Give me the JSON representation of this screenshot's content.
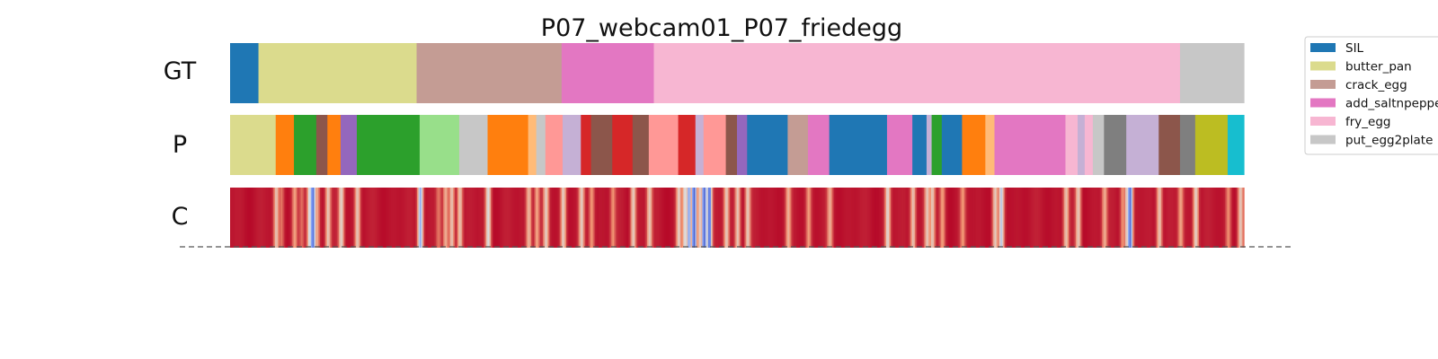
{
  "chart_data": {
    "type": "segmentation-timeline",
    "title": "P07_webcam01_P07_friedegg",
    "rows": [
      "GT",
      "P",
      "C"
    ],
    "x_range": [
      0,
      1
    ],
    "legend": {
      "placement": "top-right",
      "entries": [
        {
          "label": "SIL",
          "color": "#1f77b4"
        },
        {
          "label": "butter_pan",
          "color": "#dbdb8d"
        },
        {
          "label": "crack_egg",
          "color": "#c49c94"
        },
        {
          "label": "add_saltnpepper",
          "color": "#e377c2"
        },
        {
          "label": "fry_egg",
          "color": "#f7b6d2"
        },
        {
          "label": "put_egg2plate",
          "color": "#c7c7c7"
        }
      ]
    },
    "gt_segments": [
      {
        "start": 0.0,
        "end": 0.028,
        "color": "#1f77b4"
      },
      {
        "start": 0.028,
        "end": 0.184,
        "color": "#dbdb8d"
      },
      {
        "start": 0.184,
        "end": 0.327,
        "color": "#c49c94"
      },
      {
        "start": 0.327,
        "end": 0.418,
        "color": "#e377c2"
      },
      {
        "start": 0.418,
        "end": 0.937,
        "color": "#f7b6d2"
      },
      {
        "start": 0.937,
        "end": 1.0,
        "color": "#c7c7c7"
      }
    ],
    "p_segments": [
      {
        "start": 0.0,
        "end": 0.045,
        "color": "#dbdb8d"
      },
      {
        "start": 0.045,
        "end": 0.063,
        "color": "#ff7f0e"
      },
      {
        "start": 0.063,
        "end": 0.085,
        "color": "#2ca02c"
      },
      {
        "start": 0.085,
        "end": 0.096,
        "color": "#8c564b"
      },
      {
        "start": 0.096,
        "end": 0.109,
        "color": "#ff7f0e"
      },
      {
        "start": 0.109,
        "end": 0.125,
        "color": "#9467bd"
      },
      {
        "start": 0.125,
        "end": 0.187,
        "color": "#2ca02c"
      },
      {
        "start": 0.187,
        "end": 0.226,
        "color": "#98df8a"
      },
      {
        "start": 0.226,
        "end": 0.254,
        "color": "#c7c7c7"
      },
      {
        "start": 0.254,
        "end": 0.294,
        "color": "#ff7f0e"
      },
      {
        "start": 0.294,
        "end": 0.302,
        "color": "#ffbb78"
      },
      {
        "start": 0.302,
        "end": 0.311,
        "color": "#c7c7c7"
      },
      {
        "start": 0.311,
        "end": 0.328,
        "color": "#ff9896"
      },
      {
        "start": 0.328,
        "end": 0.346,
        "color": "#c5b0d5"
      },
      {
        "start": 0.346,
        "end": 0.356,
        "color": "#d62728"
      },
      {
        "start": 0.356,
        "end": 0.377,
        "color": "#8c564b"
      },
      {
        "start": 0.377,
        "end": 0.397,
        "color": "#d62728"
      },
      {
        "start": 0.397,
        "end": 0.413,
        "color": "#8c564b"
      },
      {
        "start": 0.413,
        "end": 0.442,
        "color": "#ff9896"
      },
      {
        "start": 0.442,
        "end": 0.459,
        "color": "#d62728"
      },
      {
        "start": 0.459,
        "end": 0.467,
        "color": "#c5b0d5"
      },
      {
        "start": 0.467,
        "end": 0.489,
        "color": "#ff9896"
      },
      {
        "start": 0.489,
        "end": 0.5,
        "color": "#8c564b"
      },
      {
        "start": 0.5,
        "end": 0.51,
        "color": "#9467bd"
      },
      {
        "start": 0.51,
        "end": 0.55,
        "color": "#1f77b4"
      },
      {
        "start": 0.55,
        "end": 0.57,
        "color": "#c49c94"
      },
      {
        "start": 0.57,
        "end": 0.591,
        "color": "#e377c2"
      },
      {
        "start": 0.591,
        "end": 0.648,
        "color": "#1f77b4"
      },
      {
        "start": 0.648,
        "end": 0.673,
        "color": "#e377c2"
      },
      {
        "start": 0.673,
        "end": 0.687,
        "color": "#1f77b4"
      },
      {
        "start": 0.687,
        "end": 0.692,
        "color": "#c5b0d5"
      },
      {
        "start": 0.692,
        "end": 0.702,
        "color": "#2ca02c"
      },
      {
        "start": 0.702,
        "end": 0.722,
        "color": "#1f77b4"
      },
      {
        "start": 0.722,
        "end": 0.745,
        "color": "#ff7f0e"
      },
      {
        "start": 0.745,
        "end": 0.754,
        "color": "#ffbb78"
      },
      {
        "start": 0.754,
        "end": 0.824,
        "color": "#e377c2"
      },
      {
        "start": 0.824,
        "end": 0.836,
        "color": "#f7b6d2"
      },
      {
        "start": 0.836,
        "end": 0.843,
        "color": "#c5b0d5"
      },
      {
        "start": 0.843,
        "end": 0.851,
        "color": "#f7b6d2"
      },
      {
        "start": 0.851,
        "end": 0.862,
        "color": "#c7c7c7"
      },
      {
        "start": 0.862,
        "end": 0.884,
        "color": "#7f7f7f"
      },
      {
        "start": 0.884,
        "end": 0.916,
        "color": "#c5b0d5"
      },
      {
        "start": 0.916,
        "end": 0.937,
        "color": "#8c564b"
      },
      {
        "start": 0.937,
        "end": 0.952,
        "color": "#7f7f7f"
      },
      {
        "start": 0.952,
        "end": 0.984,
        "color": "#bcbd22"
      },
      {
        "start": 0.984,
        "end": 1.0,
        "color": "#17becf"
      }
    ],
    "confidence": {
      "colormap": "coolwarm",
      "value_range": [
        0,
        1
      ],
      "base": 0.99,
      "dips": [
        {
          "x": 0.045,
          "value": 0.62
        },
        {
          "x": 0.05,
          "value": 0.82
        },
        {
          "x": 0.063,
          "value": 0.75
        },
        {
          "x": 0.07,
          "value": 0.85
        },
        {
          "x": 0.078,
          "value": 0.45
        },
        {
          "x": 0.081,
          "value": 0.12
        },
        {
          "x": 0.085,
          "value": 0.7
        },
        {
          "x": 0.096,
          "value": 0.6
        },
        {
          "x": 0.109,
          "value": 0.55
        },
        {
          "x": 0.125,
          "value": 0.6
        },
        {
          "x": 0.187,
          "value": 0.3
        },
        {
          "x": 0.205,
          "value": 0.82
        },
        {
          "x": 0.212,
          "value": 0.7
        },
        {
          "x": 0.218,
          "value": 0.62
        },
        {
          "x": 0.226,
          "value": 0.6
        },
        {
          "x": 0.254,
          "value": 0.5
        },
        {
          "x": 0.294,
          "value": 0.65
        },
        {
          "x": 0.302,
          "value": 0.72
        },
        {
          "x": 0.311,
          "value": 0.6
        },
        {
          "x": 0.328,
          "value": 0.58
        },
        {
          "x": 0.346,
          "value": 0.6
        },
        {
          "x": 0.356,
          "value": 0.75
        },
        {
          "x": 0.377,
          "value": 0.78
        },
        {
          "x": 0.397,
          "value": 0.58
        },
        {
          "x": 0.413,
          "value": 0.6
        },
        {
          "x": 0.442,
          "value": 0.58
        },
        {
          "x": 0.448,
          "value": 0.5
        },
        {
          "x": 0.452,
          "value": 0.3
        },
        {
          "x": 0.457,
          "value": 0.1
        },
        {
          "x": 0.463,
          "value": 0.55
        },
        {
          "x": 0.467,
          "value": 0.08
        },
        {
          "x": 0.472,
          "value": 0.12
        },
        {
          "x": 0.489,
          "value": 0.6
        },
        {
          "x": 0.5,
          "value": 0.6
        },
        {
          "x": 0.51,
          "value": 0.6
        },
        {
          "x": 0.55,
          "value": 0.7
        },
        {
          "x": 0.57,
          "value": 0.75
        },
        {
          "x": 0.591,
          "value": 0.7
        },
        {
          "x": 0.648,
          "value": 0.55
        },
        {
          "x": 0.673,
          "value": 0.6
        },
        {
          "x": 0.687,
          "value": 0.6
        },
        {
          "x": 0.692,
          "value": 0.6
        },
        {
          "x": 0.702,
          "value": 0.75
        },
        {
          "x": 0.722,
          "value": 0.78
        },
        {
          "x": 0.754,
          "value": 0.6
        },
        {
          "x": 0.76,
          "value": 0.45
        },
        {
          "x": 0.824,
          "value": 0.62
        },
        {
          "x": 0.836,
          "value": 0.6
        },
        {
          "x": 0.862,
          "value": 0.7
        },
        {
          "x": 0.88,
          "value": 0.75
        },
        {
          "x": 0.884,
          "value": 0.55
        },
        {
          "x": 0.887,
          "value": 0.12
        },
        {
          "x": 0.916,
          "value": 0.6
        },
        {
          "x": 0.937,
          "value": 0.72
        },
        {
          "x": 0.952,
          "value": 0.55
        },
        {
          "x": 0.984,
          "value": 0.78
        },
        {
          "x": 0.996,
          "value": 0.6
        }
      ]
    }
  }
}
